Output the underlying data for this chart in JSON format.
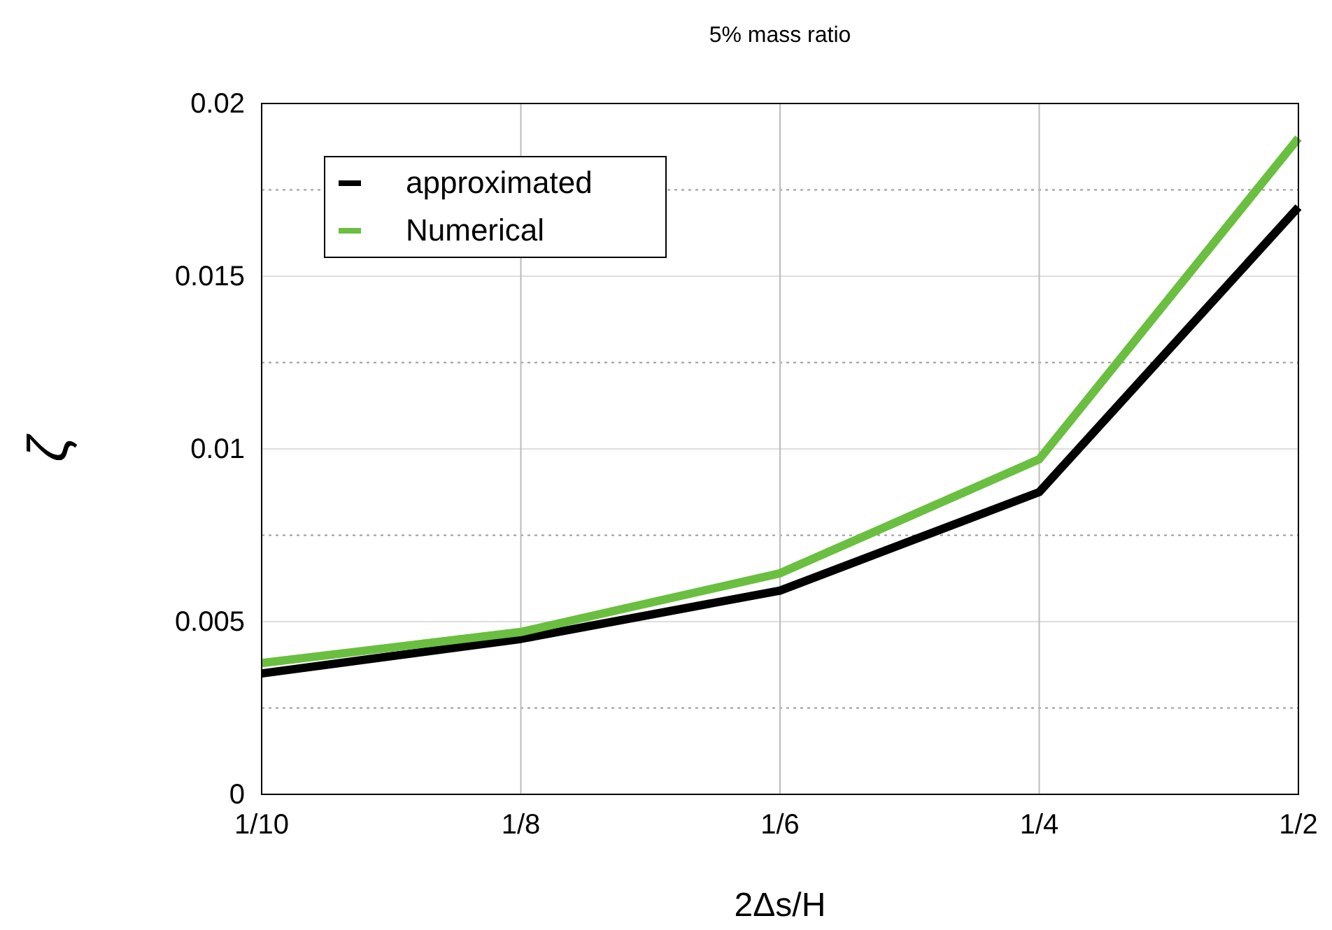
{
  "chart_data": {
    "type": "line",
    "title": "5% mass ratio",
    "xlabel": "2Δs/H",
    "ylabel": "ζ",
    "categories": [
      "1/10",
      "1/8",
      "1/6",
      "1/4",
      "1/2"
    ],
    "series": [
      {
        "name": "approximated",
        "color": "#000000",
        "values": [
          0.0035,
          0.0045,
          0.0059,
          0.00875,
          0.017
        ]
      },
      {
        "name": "Numerical",
        "color": "#6abf40",
        "values": [
          0.0038,
          0.0047,
          0.0064,
          0.0097,
          0.019
        ]
      }
    ],
    "ylim": [
      0,
      0.02
    ],
    "yticks": [
      0,
      {
        "value": 0.0025,
        "label": null
      },
      0.005,
      {
        "value": 0.0075,
        "label": null
      },
      0.01,
      {
        "value": 0.0125,
        "label": null
      },
      0.015,
      {
        "value": 0.0175,
        "label": null
      },
      0.02
    ],
    "grid": true,
    "legend": "top left",
    "marker": "none",
    "line_style": "solid"
  }
}
